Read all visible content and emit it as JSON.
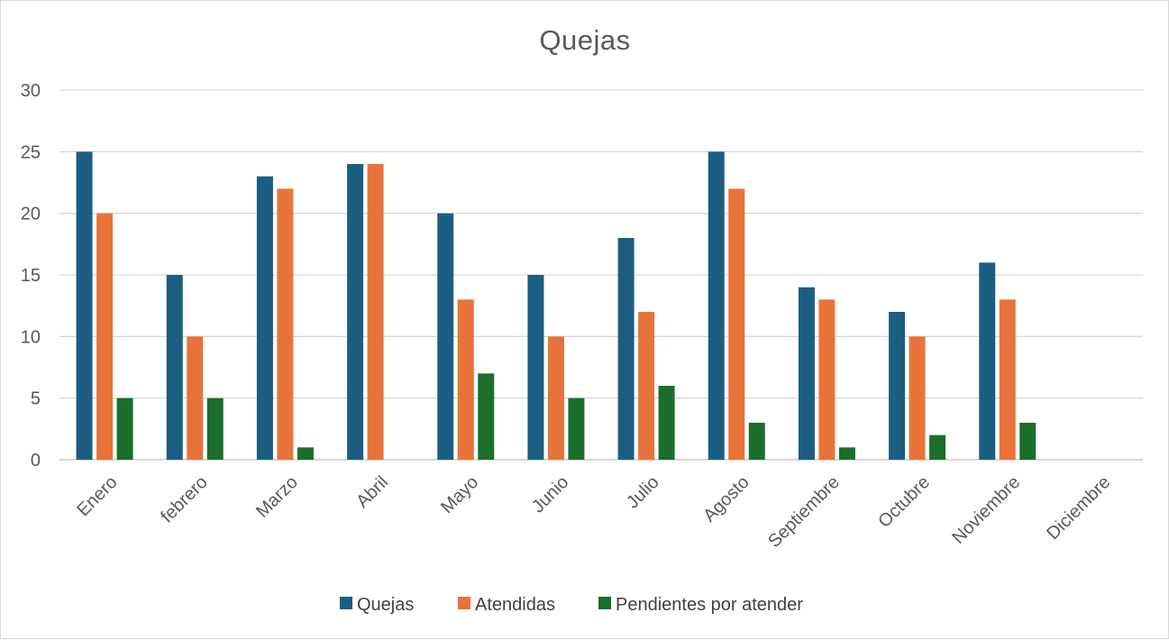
{
  "chart_data": {
    "type": "bar",
    "title": "Quejas",
    "xlabel": "",
    "ylabel": "",
    "ylim": [
      0,
      30
    ],
    "yticks": [
      0,
      5,
      10,
      15,
      20,
      25,
      30
    ],
    "grid": true,
    "legend_position": "bottom",
    "categories": [
      "Enero",
      "febrero",
      "Marzo",
      "Abril",
      "Mayo",
      "Junio",
      "Julio",
      "Agosto",
      "Septiembre",
      "Octubre",
      "Noviembre",
      "Diciembre"
    ],
    "series": [
      {
        "name": "Quejas",
        "color": "#1B5E82",
        "values": [
          25,
          15,
          23,
          24,
          20,
          15,
          18,
          25,
          14,
          12,
          16,
          null
        ]
      },
      {
        "name": "Atendidas",
        "color": "#E8733A",
        "values": [
          20,
          10,
          22,
          24,
          13,
          10,
          12,
          22,
          13,
          10,
          13,
          null
        ]
      },
      {
        "name": "Pendientes por atender",
        "color": "#1B6E2B",
        "values": [
          5,
          5,
          1,
          null,
          7,
          5,
          6,
          3,
          1,
          2,
          3,
          null
        ]
      }
    ]
  }
}
